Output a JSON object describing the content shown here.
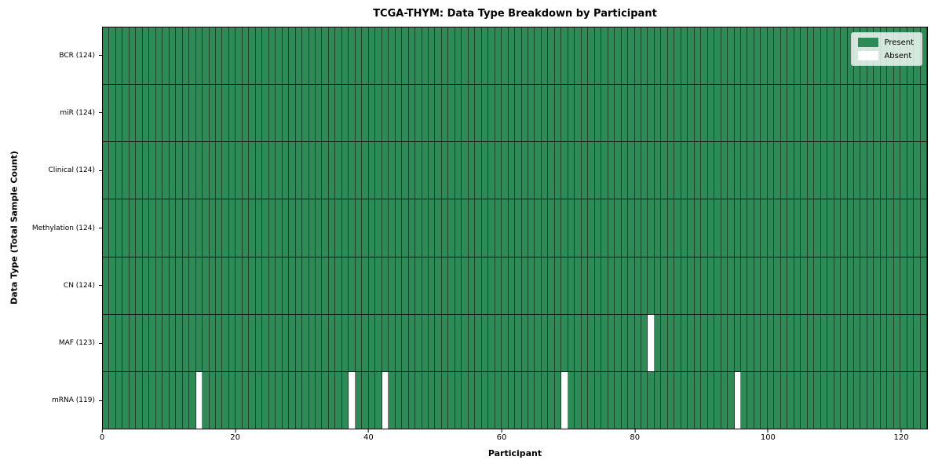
{
  "chart_data": {
    "type": "heatmap",
    "title": "TCGA-THYM: Data Type Breakdown by Participant",
    "xlabel": "Participant",
    "ylabel": "Data Type (Total Sample Count)",
    "n_participants": 124,
    "x_max": 124,
    "x_ticks": [
      0,
      20,
      40,
      60,
      80,
      100,
      120
    ],
    "rows": [
      {
        "label": "BCR (124)",
        "present_count": 124,
        "absent": []
      },
      {
        "label": "miR (124)",
        "present_count": 124,
        "absent": []
      },
      {
        "label": "Clinical (124)",
        "present_count": 124,
        "absent": []
      },
      {
        "label": "Methylation (124)",
        "present_count": 124,
        "absent": []
      },
      {
        "label": "CN (124)",
        "present_count": 124,
        "absent": []
      },
      {
        "label": "MAF (123)",
        "present_count": 123,
        "absent": [
          82
        ]
      },
      {
        "label": "mRNA (119)",
        "present_count": 119,
        "absent": [
          14,
          37,
          42,
          69,
          95
        ]
      }
    ],
    "legend": [
      {
        "label": "Present",
        "color": "#2e8b57"
      },
      {
        "label": "Absent",
        "color": "#ffffff"
      }
    ],
    "colors": {
      "present": "#2e8b57",
      "absent": "#ffffff",
      "cell_border": "rgba(0,0,0,0.5)",
      "row_separator": "#111111",
      "axes_edge": "#000000"
    },
    "legend_position": "upper right",
    "grid": "per-cell edges"
  }
}
